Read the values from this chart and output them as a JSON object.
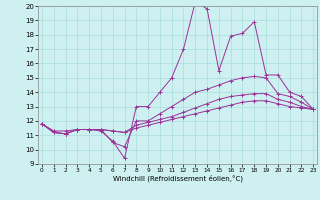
{
  "xlabel": "Windchill (Refroidissement éolien,°C)",
  "bg_color": "#cff0f0",
  "line_color": "#993399",
  "grid_color": "#aadddd",
  "xmin": 0,
  "xmax": 23,
  "ymin": 9,
  "ymax": 20,
  "lines": [
    [
      11.8,
      11.3,
      11.3,
      11.4,
      11.4,
      11.3,
      10.6,
      9.4,
      13.0,
      13.0,
      14.0,
      15.0,
      17.0,
      20.3,
      19.8,
      15.5,
      17.9,
      18.1,
      18.9,
      15.2,
      15.2,
      14.0,
      13.7,
      12.8
    ],
    [
      11.8,
      11.2,
      11.1,
      11.4,
      11.4,
      11.4,
      10.5,
      10.2,
      12.0,
      12.0,
      12.5,
      13.0,
      13.5,
      14.0,
      14.2,
      14.5,
      14.8,
      15.0,
      15.1,
      15.0,
      13.9,
      13.7,
      13.3,
      12.8
    ],
    [
      11.8,
      11.2,
      11.1,
      11.4,
      11.4,
      11.4,
      11.3,
      11.2,
      11.7,
      11.9,
      12.1,
      12.3,
      12.6,
      12.9,
      13.2,
      13.5,
      13.7,
      13.8,
      13.9,
      13.9,
      13.5,
      13.3,
      13.0,
      12.8
    ],
    [
      11.8,
      11.2,
      11.1,
      11.4,
      11.4,
      11.4,
      11.3,
      11.2,
      11.5,
      11.7,
      11.9,
      12.1,
      12.3,
      12.5,
      12.7,
      12.9,
      13.1,
      13.3,
      13.4,
      13.4,
      13.2,
      13.0,
      12.9,
      12.8
    ]
  ]
}
